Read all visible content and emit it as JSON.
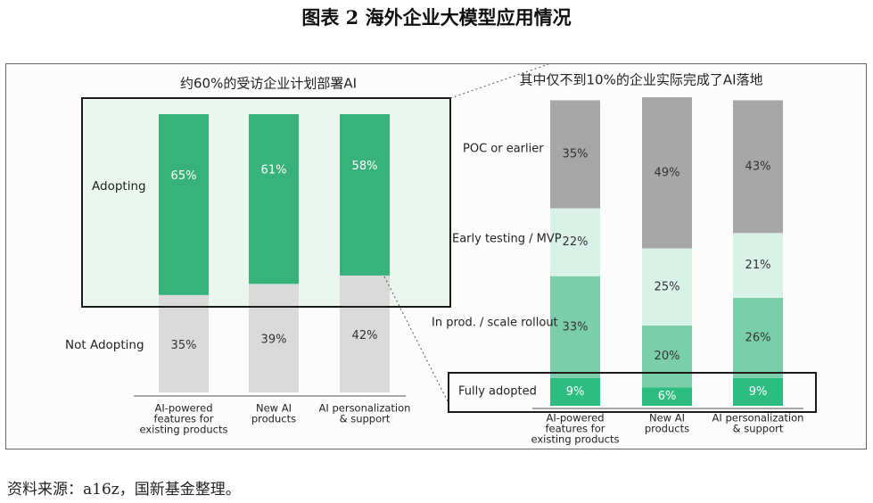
{
  "figure": {
    "title": "图表 2  海外企业大模型应用情况",
    "source": "资料来源：a16z，国新基金整理。"
  },
  "chart_data": [
    {
      "type": "bar",
      "stacked": true,
      "title": "约60%的受访企业计划部署AI",
      "categories": [
        "AI-powered features for existing products",
        "New AI products",
        "AI personalization & support"
      ],
      "category_lines": [
        [
          "AI-powered",
          "features for",
          "existing products"
        ],
        [
          "New AI",
          "products"
        ],
        [
          "AI personalization",
          "& support"
        ]
      ],
      "ylim": [
        0,
        100
      ],
      "series": [
        {
          "name": "Not Adopting",
          "values": [
            35,
            39,
            42
          ],
          "color": "#dadada"
        },
        {
          "name": "Adopting",
          "values": [
            65,
            61,
            58
          ],
          "color": "#38b27b"
        }
      ],
      "highlight": "Adopting",
      "grid": false,
      "legend": "left"
    },
    {
      "type": "bar",
      "stacked": true,
      "title": "其中仅不到10%的企业实际完成了AI落地",
      "categories": [
        "AI-powered features for existing products",
        "New AI products",
        "AI personalization & support"
      ],
      "category_lines": [
        [
          "AI-powered",
          "features for",
          "existing products"
        ],
        [
          "New AI",
          "products"
        ],
        [
          "AI personalization",
          "& support"
        ]
      ],
      "ylim": [
        0,
        100
      ],
      "series": [
        {
          "name": "Fully adopted",
          "values": [
            9,
            6,
            9
          ],
          "color": "#2ebd80"
        },
        {
          "name": "In prod. / scale rollout",
          "values": [
            33,
            20,
            26
          ],
          "color": "#7bceaa"
        },
        {
          "name": "Early testing / MVP",
          "values": [
            22,
            25,
            21
          ],
          "color": "#d9f1e6"
        },
        {
          "name": "POC or earlier",
          "values": [
            35,
            49,
            43
          ],
          "color": "#a7a7a7"
        }
      ],
      "highlight": "Fully adopted",
      "grid": false,
      "legend": "left"
    }
  ]
}
